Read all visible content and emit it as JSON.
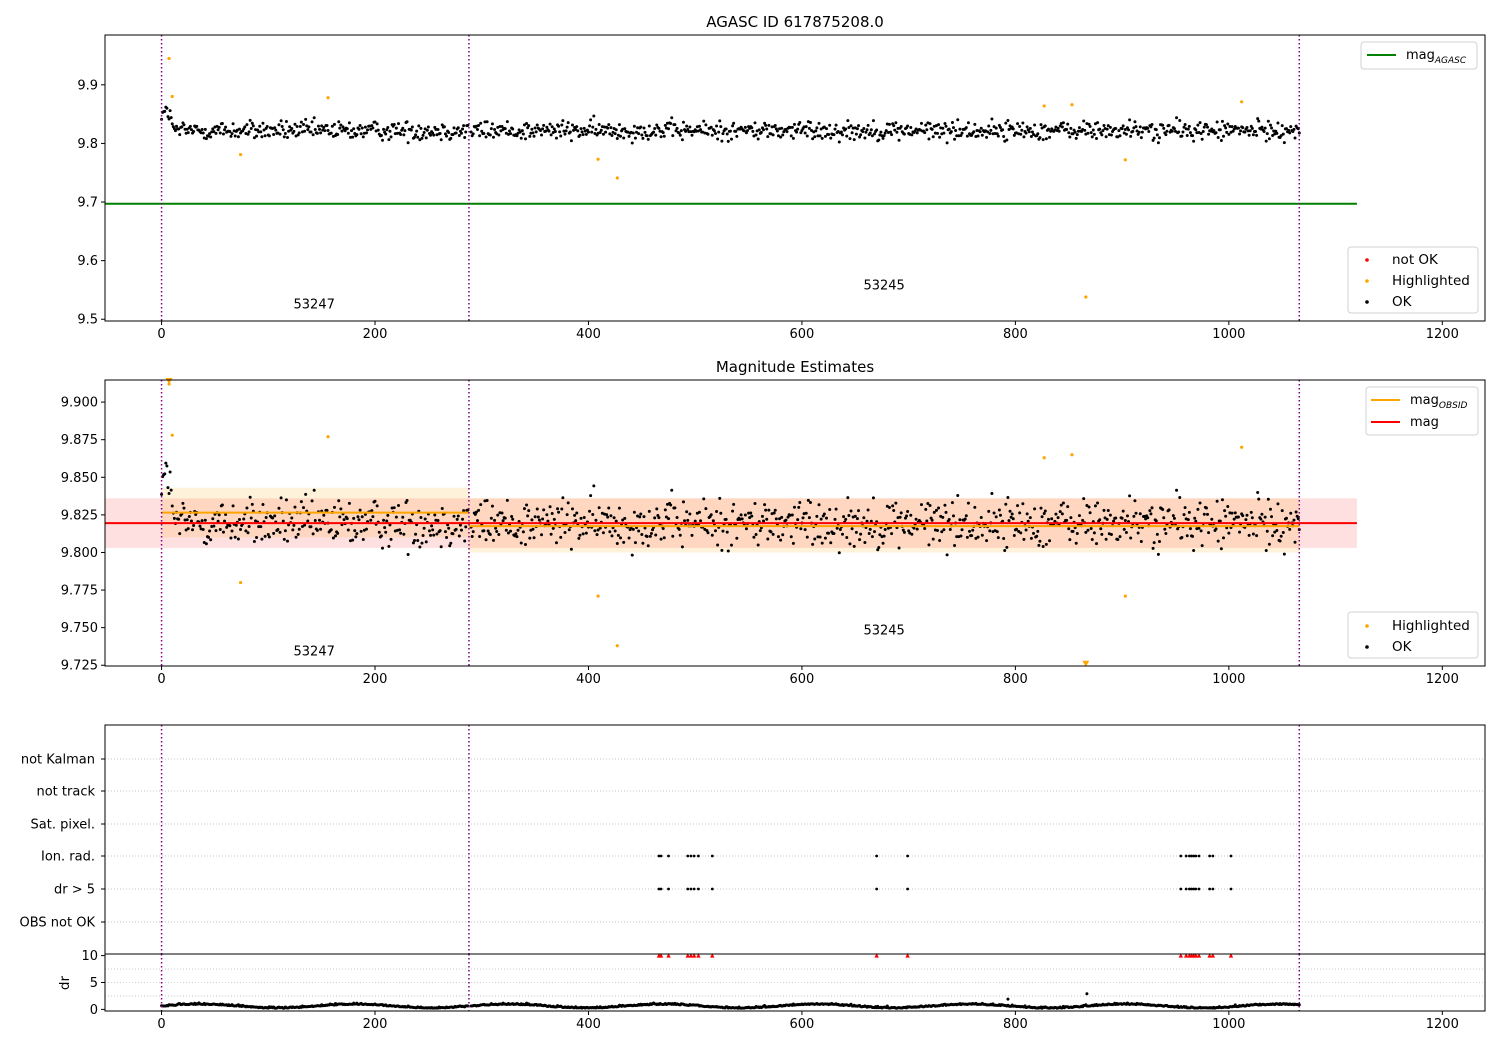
{
  "chart_data": [
    {
      "type": "scatter",
      "title": "AGASC ID 617875208.0",
      "xlim": [
        -53,
        1240
      ],
      "ylim": [
        9.497,
        9.985
      ],
      "xticks": [
        0,
        200,
        400,
        600,
        800,
        1000,
        1200
      ],
      "yticks": [
        9.5,
        9.6,
        9.7,
        9.8,
        9.9
      ],
      "ytick_decimals": 1,
      "obs_boundaries": [
        0,
        288,
        1066
      ],
      "obs_labels": [
        {
          "text": "53247",
          "x": 143,
          "y": 9.518
        },
        {
          "text": "53245",
          "x": 677,
          "y": 9.551
        }
      ],
      "lines": [
        {
          "name": "mag_AGASC",
          "color": "#008000",
          "x": [
            -53,
            1120
          ],
          "y": [
            9.697,
            9.697
          ]
        }
      ],
      "series": [
        {
          "name": "OK",
          "color": "#000000",
          "mean": 9.822,
          "noise": 0.016
        },
        {
          "name": "Highlighted",
          "color": "#ffa500",
          "points": [
            [
              7,
              9.945
            ],
            [
              10,
              9.88
            ],
            [
              74,
              9.781
            ],
            [
              156,
              9.878
            ],
            [
              409,
              9.773
            ],
            [
              427,
              9.741
            ],
            [
              827,
              9.864
            ],
            [
              853,
              9.866
            ],
            [
              866,
              9.538
            ],
            [
              903,
              9.772
            ],
            [
              1012,
              9.871
            ]
          ]
        }
      ],
      "legend": {
        "placement": "top-right",
        "entries": [
          {
            "label": "mag",
            "sub": "AGASC",
            "color": "#008000",
            "kind": "line"
          }
        ]
      },
      "legend2": {
        "placement": "bottom-right",
        "entries": [
          {
            "label": "not OK",
            "color": "#ff0000",
            "kind": "dot"
          },
          {
            "label": "Highlighted",
            "color": "#ffa500",
            "kind": "dot"
          },
          {
            "label": "OK",
            "color": "#000000",
            "kind": "dot"
          }
        ]
      }
    },
    {
      "type": "scatter",
      "title": "Magnitude Estimates",
      "xlim": [
        -53,
        1240
      ],
      "ylim": [
        9.7245,
        9.9147
      ],
      "xticks": [
        0,
        200,
        400,
        600,
        800,
        1000,
        1200
      ],
      "yticks": [
        9.725,
        9.75,
        9.775,
        9.8,
        9.825,
        9.85,
        9.875,
        9.9
      ],
      "ytick_decimals": 3,
      "obs_boundaries": [
        0,
        288,
        1066
      ],
      "obs_labels": [
        {
          "text": "53247",
          "x": 143,
          "y": 9.7315
        },
        {
          "text": "53245",
          "x": 677,
          "y": 9.7455
        }
      ],
      "bands": [
        {
          "color": "#ff0000",
          "opacity": 0.12,
          "x": [
            -53,
            1120
          ],
          "y": [
            9.803,
            9.836
          ]
        },
        {
          "color": "#ffa500",
          "opacity": 0.14,
          "x": [
            0,
            288
          ],
          "y": [
            9.81,
            9.843
          ]
        },
        {
          "color": "#ffa500",
          "opacity": 0.14,
          "x": [
            288,
            1066
          ],
          "y": [
            9.8,
            9.836
          ]
        }
      ],
      "lines": [
        {
          "name": "mag",
          "color": "#ff0000",
          "x": [
            -53,
            1120
          ],
          "y": [
            9.8195,
            9.8195
          ]
        },
        {
          "name": "mag_OBSID",
          "color": "#ffa500",
          "x": [
            0,
            288
          ],
          "y": [
            9.8265,
            9.8265
          ]
        },
        {
          "name": "mag_OBSID",
          "color": "#ffa500",
          "x": [
            288,
            1066
          ],
          "y": [
            9.8175,
            9.8175
          ]
        }
      ],
      "series": [
        {
          "name": "OK",
          "color": "#000000",
          "mean": 9.8195,
          "noise": 0.016
        },
        {
          "name": "Highlighted",
          "color": "#ffa500",
          "points": [
            [
              7,
              9.912
            ],
            [
              10,
              9.878
            ],
            [
              74,
              9.78
            ],
            [
              156,
              9.877
            ],
            [
              409,
              9.771
            ],
            [
              427,
              9.738
            ],
            [
              827,
              9.863
            ],
            [
              853,
              9.865
            ],
            [
              903,
              9.771
            ],
            [
              1012,
              9.87
            ]
          ],
          "markers": [
            [
              7,
              9.914
            ],
            [
              866,
              9.726
            ]
          ]
        }
      ],
      "legend": {
        "placement": "top-right",
        "entries": [
          {
            "label": "mag",
            "sub": "OBSID",
            "color": "#ffa500",
            "kind": "line"
          },
          {
            "label": "mag",
            "sub": "",
            "color": "#ff0000",
            "kind": "line"
          }
        ]
      },
      "legend2": {
        "placement": "bottom-right",
        "entries": [
          {
            "label": "Highlighted",
            "color": "#ffa500",
            "kind": "dot"
          },
          {
            "label": "OK",
            "color": "#000000",
            "kind": "dot"
          }
        ]
      }
    },
    {
      "type": "scatter",
      "xlim": [
        -53,
        1240
      ],
      "xticks": [
        0,
        200,
        400,
        600,
        800,
        1000,
        1200
      ],
      "obs_boundaries": [
        0,
        288,
        1066
      ],
      "flag_categories": [
        "not Kalman",
        "not track",
        "Sat. pixel.",
        "Ion. rad.",
        "dr > 5",
        "OBS not OK"
      ],
      "flag_points": {
        "Ion. rad.": [
          466,
          468,
          475,
          493,
          496,
          499,
          503,
          516,
          670,
          699,
          955,
          960,
          963,
          965,
          967,
          969,
          972,
          982,
          985,
          1002
        ],
        "dr > 5": [
          466,
          468,
          475,
          493,
          496,
          499,
          503,
          516,
          670,
          699,
          955,
          960,
          963,
          965,
          967,
          969,
          972,
          982,
          985,
          1002
        ]
      }
    },
    {
      "type": "scatter",
      "ylabel": "dr",
      "xlim": [
        -53,
        1240
      ],
      "ylim": [
        -0.3,
        10.3
      ],
      "xticks": [
        0,
        200,
        400,
        600,
        800,
        1000,
        1200
      ],
      "yticks": [
        0,
        5,
        10
      ],
      "obs_boundaries": [
        0,
        288,
        1066
      ],
      "clipped_x": [
        466,
        468,
        475,
        493,
        496,
        499,
        503,
        516,
        670,
        699,
        955,
        960,
        963,
        965,
        967,
        969,
        972,
        982,
        985,
        1002
      ],
      "outliers": [
        [
          867,
          2.9
        ],
        [
          793,
          1.9
        ]
      ]
    }
  ]
}
